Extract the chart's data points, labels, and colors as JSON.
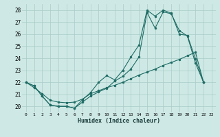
{
  "xlabel": "Humidex (Indice chaleur)",
  "background_color": "#cee9e5",
  "grid_color": "#a8ccc8",
  "line_color": "#1e6b64",
  "xlim": [
    -0.5,
    23.5
  ],
  "ylim": [
    19.5,
    28.5
  ],
  "xticks": [
    0,
    1,
    2,
    3,
    4,
    5,
    6,
    7,
    8,
    9,
    10,
    11,
    12,
    13,
    14,
    15,
    16,
    17,
    18,
    19,
    20,
    21,
    22,
    23
  ],
  "yticks": [
    20,
    21,
    22,
    23,
    24,
    25,
    26,
    27,
    28
  ],
  "curve1_x": [
    0,
    1,
    2,
    3,
    4,
    5,
    6,
    7,
    8,
    9,
    10,
    11,
    12,
    13,
    14,
    15,
    16,
    17,
    18,
    19,
    20,
    21,
    22
  ],
  "curve1_y": [
    22.0,
    21.7,
    20.85,
    20.1,
    20.0,
    20.0,
    19.85,
    20.55,
    21.15,
    22.0,
    22.55,
    22.2,
    23.0,
    24.1,
    25.1,
    28.0,
    27.5,
    28.0,
    27.75,
    26.0,
    25.9,
    23.95,
    22.0
  ],
  "curve2_x": [
    0,
    1,
    2,
    3,
    4,
    5,
    6,
    7,
    8,
    9,
    10,
    11,
    12,
    13,
    14,
    15,
    16,
    17,
    18,
    19,
    20,
    21,
    22
  ],
  "curve2_y": [
    22.0,
    21.7,
    20.85,
    20.1,
    20.0,
    20.0,
    19.85,
    20.35,
    20.85,
    21.2,
    21.5,
    22.1,
    22.5,
    23.1,
    24.1,
    27.8,
    26.5,
    27.85,
    27.7,
    26.3,
    25.85,
    23.6,
    22.0
  ],
  "curve3_x": [
    0,
    1,
    2,
    3,
    4,
    5,
    6,
    7,
    8,
    9,
    10,
    11,
    12,
    13,
    14,
    15,
    16,
    17,
    18,
    19,
    20,
    21,
    22
  ],
  "curve3_y": [
    22.0,
    21.55,
    21.05,
    20.5,
    20.35,
    20.3,
    20.35,
    20.6,
    21.05,
    21.3,
    21.55,
    21.75,
    22.0,
    22.3,
    22.6,
    22.85,
    23.1,
    23.4,
    23.65,
    23.9,
    24.2,
    24.5,
    22.0
  ]
}
